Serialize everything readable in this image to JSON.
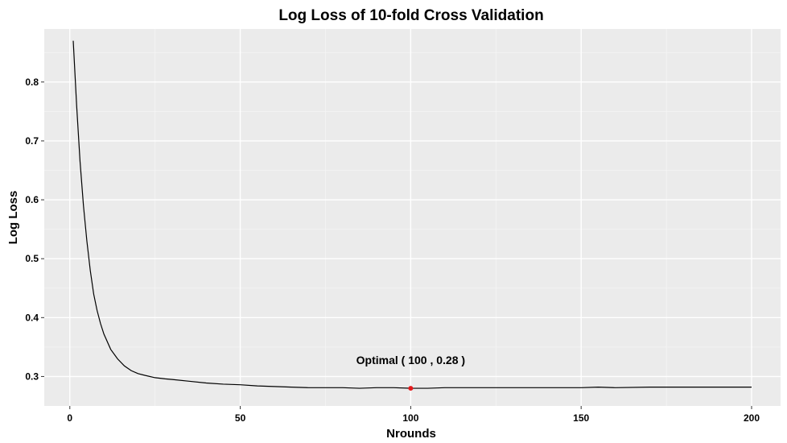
{
  "chart_data": {
    "type": "line",
    "title": "Log Loss of 10-fold Cross Validation",
    "xlabel": "Nrounds",
    "ylabel": "Log Loss",
    "xlim": [
      -7.5,
      208.5
    ],
    "ylim": [
      0.25,
      0.89
    ],
    "x_ticks": [
      0,
      50,
      100,
      150,
      200
    ],
    "x_tick_labels": [
      "0",
      "50",
      "100",
      "150",
      "200"
    ],
    "y_ticks": [
      0.3,
      0.4,
      0.5,
      0.6,
      0.7,
      0.8
    ],
    "y_tick_labels": [
      "0.3",
      "0.4",
      "0.5",
      "0.6",
      "0.7",
      "0.8"
    ],
    "grid": true,
    "legend": "none",
    "colors": {
      "panel": "#ebebeb",
      "grid_major": "#ffffff",
      "line": "#000000",
      "highlight": "#e41a1c"
    },
    "series": [
      {
        "x": [
          1,
          2,
          3,
          4,
          5,
          6,
          7,
          8,
          9,
          10,
          12,
          14,
          16,
          18,
          20,
          22,
          25,
          28,
          30,
          35,
          40,
          45,
          50,
          55,
          60,
          65,
          70,
          75,
          80,
          85,
          90,
          95,
          100,
          105,
          110,
          120,
          130,
          140,
          150,
          155,
          160,
          170,
          180,
          190,
          200
        ],
        "y": [
          0.87,
          0.76,
          0.665,
          0.59,
          0.53,
          0.48,
          0.44,
          0.412,
          0.39,
          0.372,
          0.346,
          0.33,
          0.318,
          0.31,
          0.305,
          0.302,
          0.298,
          0.296,
          0.295,
          0.292,
          0.289,
          0.287,
          0.286,
          0.284,
          0.283,
          0.282,
          0.281,
          0.281,
          0.281,
          0.28,
          0.281,
          0.281,
          0.28,
          0.28,
          0.281,
          0.281,
          0.281,
          0.281,
          0.281,
          0.282,
          0.281,
          0.282,
          0.282,
          0.282,
          0.282
        ]
      }
    ],
    "highlight_point": {
      "x": 100,
      "y": 0.28
    },
    "annotation": "Optimal ( 100 , 0.28 )"
  }
}
